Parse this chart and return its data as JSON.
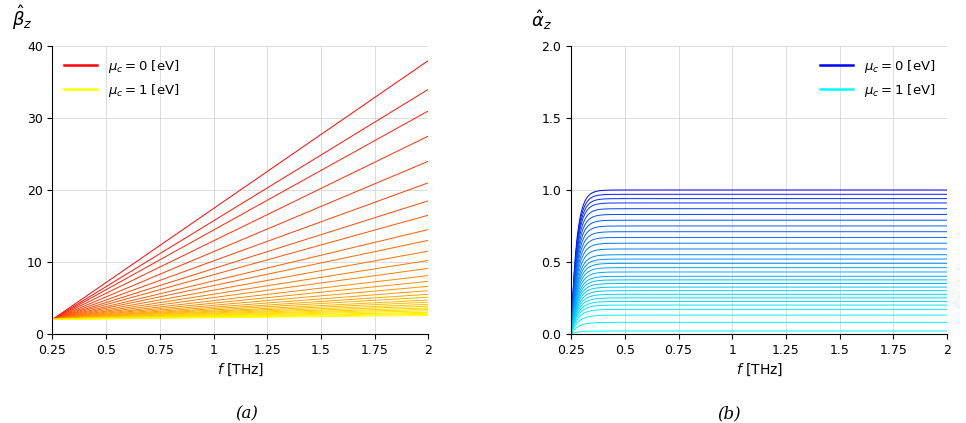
{
  "f_min": 0.25,
  "f_max": 2.0,
  "n_freq": 500,
  "n_lines": 30,
  "left_ylabel": "$\\hat{\\beta}_z$",
  "right_ylabel": "$\\hat{\\alpha}_z$",
  "xlabel": "$f$ [THz]",
  "left_ylim": [
    0,
    40
  ],
  "right_ylim": [
    0,
    2
  ],
  "left_yticks": [
    0,
    10,
    20,
    30,
    40
  ],
  "right_yticks": [
    0,
    0.5,
    1.0,
    1.5,
    2.0
  ],
  "xticks": [
    0.25,
    0.5,
    0.75,
    1.0,
    1.25,
    1.5,
    1.75,
    2.0
  ],
  "left_legend": [
    {
      "label": "$\\mu_c=0$ [eV]",
      "color": "#FF0000"
    },
    {
      "label": "$\\mu_c=1$ [eV]",
      "color": "#FFFF00"
    }
  ],
  "right_legend": [
    {
      "label": "$\\mu_c=0$ [eV]",
      "color": "#0000FF"
    },
    {
      "label": "$\\mu_c=1$ [eV]",
      "color": "#00FFFF"
    }
  ],
  "subtitle_a": "(a)",
  "subtitle_b": "(b)",
  "background_color": "#FFFFFF",
  "grid_color": "#D0D0D0",
  "left_slopes_end": [
    38.0,
    34.0,
    31.0,
    27.5,
    24.0,
    21.0,
    18.5,
    16.5,
    14.5,
    13.0,
    11.5,
    10.2,
    9.1,
    8.1,
    7.3,
    6.6,
    6.0,
    5.5,
    5.1,
    4.7,
    4.4,
    4.1,
    3.85,
    3.6,
    3.4,
    3.2,
    3.0,
    2.85,
    2.7,
    2.55
  ],
  "right_sat_levels": [
    1.0,
    0.97,
    0.94,
    0.91,
    0.87,
    0.83,
    0.79,
    0.75,
    0.71,
    0.67,
    0.63,
    0.59,
    0.55,
    0.52,
    0.49,
    0.46,
    0.43,
    0.4,
    0.375,
    0.35,
    0.325,
    0.3,
    0.275,
    0.25,
    0.225,
    0.2,
    0.17,
    0.13,
    0.08,
    0.02
  ]
}
